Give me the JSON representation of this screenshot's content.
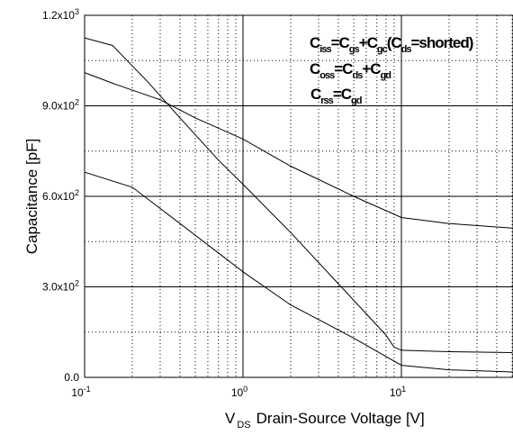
{
  "chart_data": {
    "type": "line",
    "xscale": "log",
    "xlim": [
      0.1,
      50
    ],
    "ylim": [
      0,
      1200
    ],
    "grid": true,
    "xlabel": {
      "main": "V",
      "sub": "DS",
      "rest": "Drain-Source Voltage [V]"
    },
    "ylabel": "Capacitance   [pF]",
    "x_ticks": [
      {
        "value": 0.1,
        "base": "10",
        "exp": "-1"
      },
      {
        "value": 1,
        "base": "10",
        "exp": "0"
      },
      {
        "value": 10,
        "base": "10",
        "exp": "1"
      }
    ],
    "y_ticks": [
      {
        "value": 0,
        "label": "0.0",
        "exp": ""
      },
      {
        "value": 300,
        "label": "3.0x10",
        "exp": "2"
      },
      {
        "value": 600,
        "label": "6.0x10",
        "exp": "2"
      },
      {
        "value": 900,
        "label": "9.0x10",
        "exp": "2"
      },
      {
        "value": 1200,
        "label": "1.2x10",
        "exp": "3"
      }
    ],
    "series": [
      {
        "key": "ciss",
        "x": [
          0.1,
          0.15,
          0.3,
          0.5,
          1,
          2,
          5,
          10,
          20,
          50
        ],
        "y": [
          1010,
          975,
          920,
          860,
          790,
          700,
          600,
          530,
          510,
          495
        ]
      },
      {
        "key": "coss",
        "x": [
          0.1,
          0.15,
          0.25,
          0.4,
          0.7,
          1,
          2,
          4,
          8,
          9,
          10,
          20,
          50
        ],
        "y": [
          1125,
          1100,
          980,
          860,
          720,
          640,
          480,
          310,
          140,
          100,
          90,
          85,
          82
        ]
      },
      {
        "key": "crss",
        "x": [
          0.1,
          0.2,
          0.4,
          1,
          2,
          5,
          10,
          20,
          50
        ],
        "y": [
          680,
          630,
          510,
          350,
          240,
          130,
          40,
          25,
          18
        ]
      }
    ],
    "legend": [
      {
        "parts": [
          "C",
          "iss",
          "=C",
          "gs",
          "+C",
          "gc",
          "(C",
          "ds",
          "=shorted)"
        ]
      },
      {
        "parts": [
          "C",
          "oss",
          "=C",
          "ds",
          "+C",
          "gd"
        ]
      },
      {
        "parts": [
          "C",
          "rss",
          "=C",
          "gd"
        ]
      }
    ]
  }
}
